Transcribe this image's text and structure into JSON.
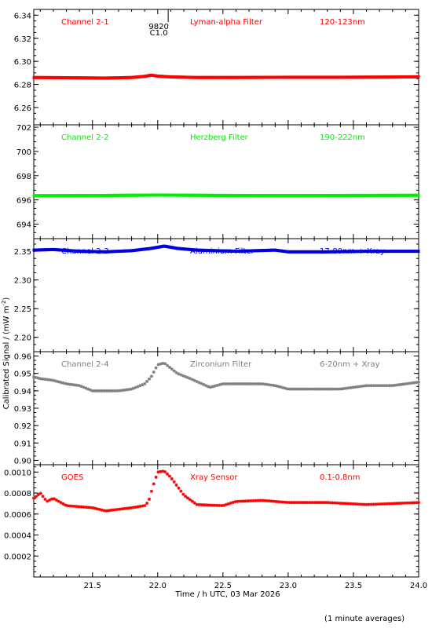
{
  "chart_data": {
    "type": "scatter",
    "xlabel": "Time / h UTC, 03 Mar 2026",
    "ylabel": "Calibrated Signal / (mW m-2)",
    "ylabel_main": "Calibrated Signal / (mW m",
    "ylabel_sup": "-2",
    "ylabel_close": ")",
    "footnote": "(1 minute averages)",
    "xlim": [
      21.05,
      24.0
    ],
    "xticks": [
      "21.5",
      "22.0",
      "22.5",
      "23.0",
      "23.5",
      "24.0"
    ],
    "flare_marker": {
      "x": 22.02,
      "label_top": "9820",
      "label_bottom": "C1.0"
    },
    "panels": [
      {
        "name": "Channel 2-1",
        "filter": "Lyman-alpha Filter",
        "band": "120-123nm",
        "color": "#ff0000",
        "ylim": [
          6.245,
          6.345
        ],
        "yticks": [
          "6.26",
          "6.28",
          "6.30",
          "6.32",
          "6.34"
        ],
        "series": {
          "x": [
            21.05,
            21.3,
            21.6,
            21.8,
            21.9,
            21.95,
            22.0,
            22.1,
            22.3,
            22.6,
            23.0,
            23.4,
            23.8,
            24.0
          ],
          "y": [
            6.286,
            6.2858,
            6.2855,
            6.286,
            6.287,
            6.288,
            6.2872,
            6.2865,
            6.286,
            6.286,
            6.2862,
            6.2862,
            6.2864,
            6.2866
          ]
        }
      },
      {
        "name": "Channel 2-2",
        "filter": "Herzberg Filter",
        "band": "190-222nm",
        "color": "#00ee00",
        "ylim": [
          692.8,
          702.2
        ],
        "yticks": [
          "694",
          "696",
          "698",
          "700",
          "702"
        ],
        "series": {
          "x": [
            21.05,
            21.5,
            22.0,
            22.5,
            23.0,
            23.5,
            24.0
          ],
          "y": [
            696.35,
            696.36,
            696.4,
            696.37,
            696.36,
            696.37,
            696.38
          ]
        }
      },
      {
        "name": "Channel 2-3",
        "filter": "Aluminium Filter",
        "band": "17-80nm + Xray",
        "color": "#0000dd",
        "ylim": [
          2.175,
          2.372
        ],
        "yticks": [
          "2.20",
          "2.25",
          "2.30",
          "2.35"
        ],
        "series": {
          "x": [
            21.05,
            21.2,
            21.4,
            21.6,
            21.8,
            21.95,
            22.05,
            22.15,
            22.3,
            22.6,
            22.9,
            23.0,
            23.3,
            23.6,
            24.0
          ],
          "y": [
            2.352,
            2.353,
            2.35,
            2.349,
            2.351,
            2.355,
            2.359,
            2.355,
            2.352,
            2.35,
            2.352,
            2.349,
            2.349,
            2.35,
            2.35
          ]
        }
      },
      {
        "name": "Channel 2-4",
        "filter": "Zirconium Filter",
        "band": "6-20nm + Xray",
        "color": "#808080",
        "ylim": [
          0.8975,
          0.9625
        ],
        "yticks": [
          "0.90",
          "0.91",
          "0.92",
          "0.93",
          "0.94",
          "0.95",
          "0.96"
        ],
        "series": {
          "x": [
            21.05,
            21.1,
            21.2,
            21.3,
            21.4,
            21.5,
            21.6,
            21.7,
            21.8,
            21.9,
            21.95,
            22.0,
            22.05,
            22.15,
            22.25,
            22.4,
            22.5,
            22.6,
            22.8,
            22.9,
            23.0,
            23.2,
            23.4,
            23.6,
            23.8,
            24.0
          ],
          "y": [
            0.948,
            0.947,
            0.946,
            0.944,
            0.943,
            0.94,
            0.94,
            0.94,
            0.941,
            0.944,
            0.948,
            0.955,
            0.956,
            0.95,
            0.947,
            0.942,
            0.944,
            0.944,
            0.944,
            0.943,
            0.941,
            0.941,
            0.941,
            0.943,
            0.943,
            0.945
          ]
        }
      },
      {
        "name": "GOES",
        "filter": "Xray Sensor",
        "band": "0.1-0.8nm",
        "color": "#ff0000",
        "ylim": [
          0.0,
          0.00107
        ],
        "yticks": [
          "0.0002",
          "0.0004",
          "0.0006",
          "0.0008",
          "0.0010"
        ],
        "series": {
          "x": [
            21.05,
            21.1,
            21.15,
            21.2,
            21.3,
            21.5,
            21.6,
            21.8,
            21.9,
            21.93,
            21.96,
            22.0,
            22.05,
            22.1,
            22.2,
            22.3,
            22.5,
            22.6,
            22.8,
            23.0,
            23.3,
            23.6,
            23.8,
            24.0
          ],
          "y": [
            0.00075,
            0.0008,
            0.00072,
            0.00075,
            0.00068,
            0.00066,
            0.00063,
            0.00066,
            0.00068,
            0.00072,
            0.00085,
            0.001,
            0.00101,
            0.00095,
            0.00078,
            0.00069,
            0.00068,
            0.00072,
            0.00073,
            0.00071,
            0.00071,
            0.00069,
            0.0007,
            0.00071
          ]
        }
      }
    ]
  }
}
